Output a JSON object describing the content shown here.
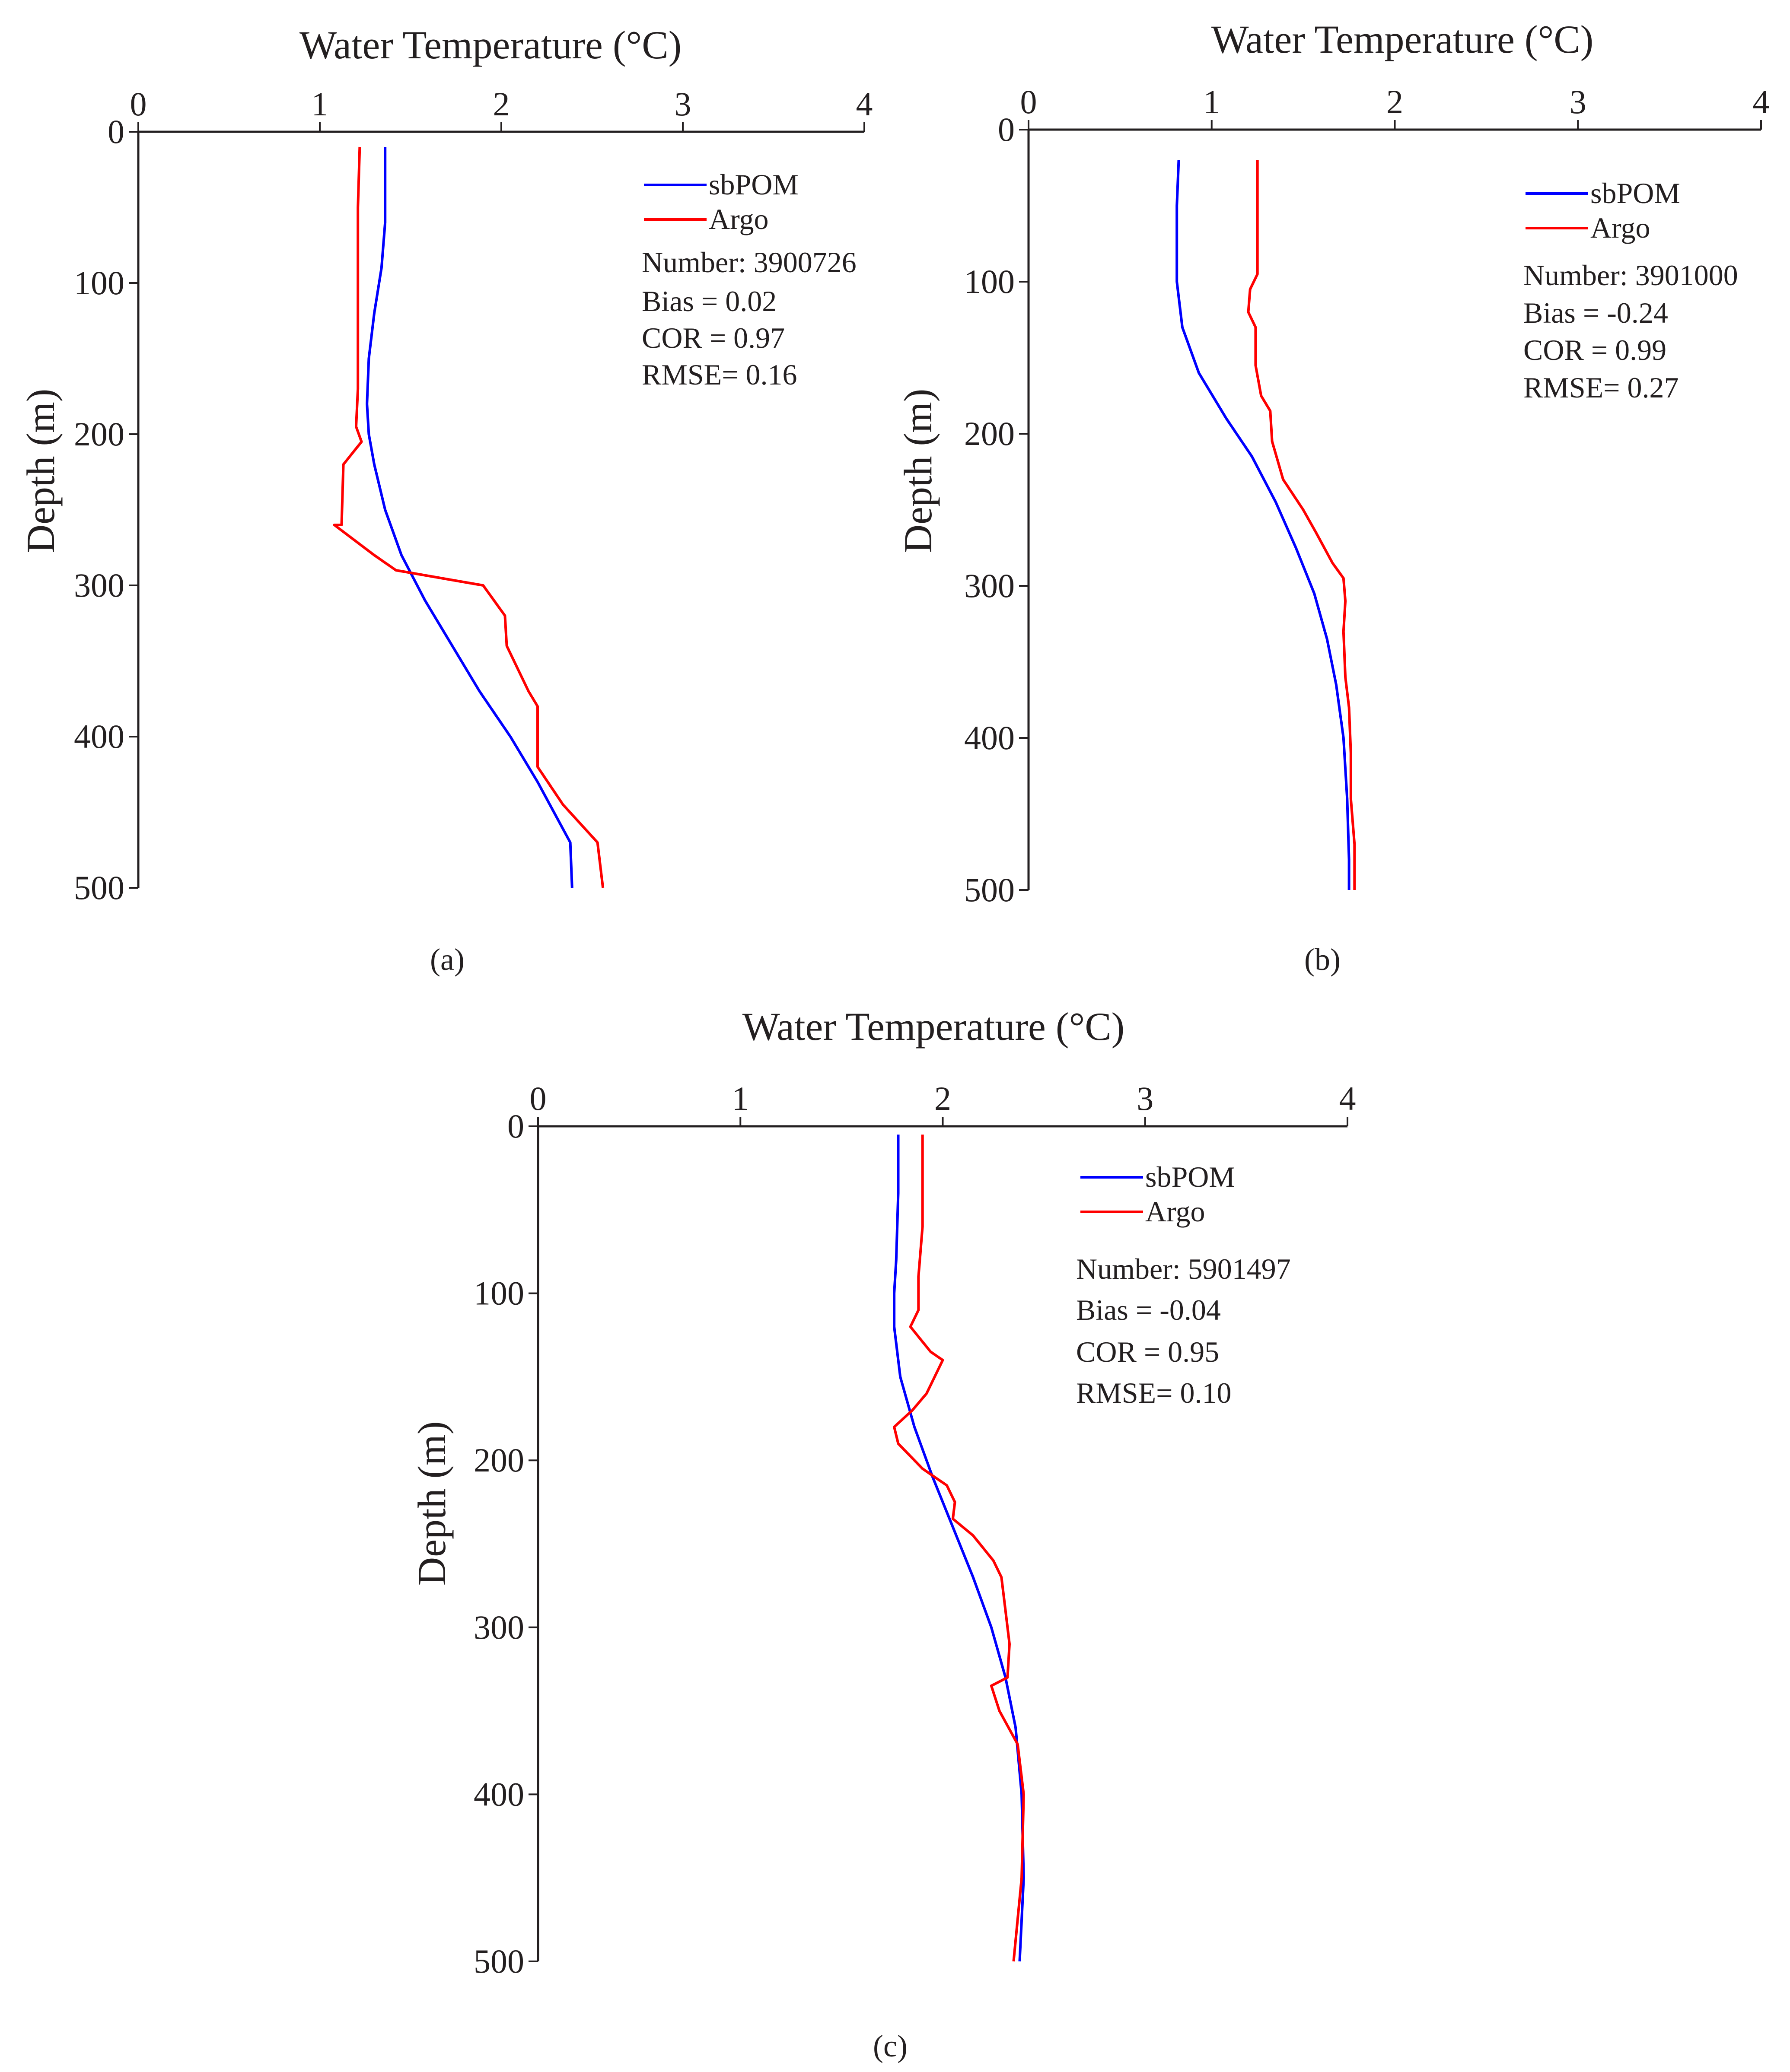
{
  "chart_data": [
    {
      "type": "line",
      "panel_label": "a",
      "xlabel": "Water Temperature (°C)",
      "ylabel": "Depth (m)",
      "xlim": [
        0,
        4
      ],
      "ylim": [
        0,
        500
      ],
      "x_ticks": [
        0,
        1,
        2,
        3,
        4
      ],
      "y_ticks": [
        0,
        100,
        200,
        300,
        400,
        500
      ],
      "legend": {
        "position": "top-right",
        "entries": [
          {
            "name": "sbPOM",
            "color": "#0000ff"
          },
          {
            "name": "Argo",
            "color": "#ff0000"
          }
        ]
      },
      "stats": [
        "Number: 3900726",
        "Bias = 0.02",
        "COR = 0.97",
        "RMSE= 0.16"
      ],
      "series": [
        {
          "name": "sbPOM",
          "color": "#0000ff",
          "points": [
            [
              1.36,
              10
            ],
            [
              1.36,
              30
            ],
            [
              1.36,
              60
            ],
            [
              1.34,
              90
            ],
            [
              1.3,
              120
            ],
            [
              1.27,
              150
            ],
            [
              1.26,
              180
            ],
            [
              1.27,
              200
            ],
            [
              1.3,
              220
            ],
            [
              1.36,
              250
            ],
            [
              1.45,
              280
            ],
            [
              1.58,
              310
            ],
            [
              1.73,
              340
            ],
            [
              1.88,
              370
            ],
            [
              2.05,
              400
            ],
            [
              2.2,
              430
            ],
            [
              2.38,
              470
            ],
            [
              2.39,
              500
            ]
          ]
        },
        {
          "name": "Argo",
          "color": "#ff0000",
          "points": [
            [
              1.22,
              10
            ],
            [
              1.21,
              50
            ],
            [
              1.21,
              100
            ],
            [
              1.21,
              150
            ],
            [
              1.21,
              170
            ],
            [
              1.2,
              195
            ],
            [
              1.23,
              205
            ],
            [
              1.13,
              220
            ],
            [
              1.12,
              260
            ],
            [
              1.08,
              260
            ],
            [
              1.3,
              280
            ],
            [
              1.42,
              290
            ],
            [
              1.9,
              300
            ],
            [
              2.02,
              320
            ],
            [
              2.03,
              340
            ],
            [
              2.15,
              370
            ],
            [
              2.2,
              380
            ],
            [
              2.2,
              420
            ],
            [
              2.34,
              445
            ],
            [
              2.53,
              470
            ],
            [
              2.56,
              500
            ]
          ]
        }
      ]
    },
    {
      "type": "line",
      "panel_label": "b",
      "xlabel": "Water Temperature (°C)",
      "ylabel": "Depth (m)",
      "xlim": [
        0,
        4
      ],
      "ylim": [
        0,
        500
      ],
      "x_ticks": [
        0,
        1,
        2,
        3,
        4
      ],
      "y_ticks": [
        0,
        100,
        200,
        300,
        400,
        500
      ],
      "legend": {
        "position": "top-right",
        "entries": [
          {
            "name": "sbPOM",
            "color": "#0000ff"
          },
          {
            "name": "Argo",
            "color": "#ff0000"
          }
        ]
      },
      "stats": [
        "Number: 3901000",
        "Bias = -0.24",
        "COR = 0.99",
        "RMSE= 0.27"
      ],
      "series": [
        {
          "name": "sbPOM",
          "color": "#0000ff",
          "points": [
            [
              0.82,
              20
            ],
            [
              0.81,
              50
            ],
            [
              0.81,
              80
            ],
            [
              0.81,
              100
            ],
            [
              0.84,
              130
            ],
            [
              0.93,
              160
            ],
            [
              1.08,
              190
            ],
            [
              1.22,
              215
            ],
            [
              1.35,
              245
            ],
            [
              1.46,
              275
            ],
            [
              1.56,
              305
            ],
            [
              1.63,
              335
            ],
            [
              1.68,
              365
            ],
            [
              1.72,
              400
            ],
            [
              1.74,
              440
            ],
            [
              1.75,
              480
            ],
            [
              1.75,
              500
            ]
          ]
        },
        {
          "name": "Argo",
          "color": "#ff0000",
          "points": [
            [
              1.25,
              20
            ],
            [
              1.25,
              60
            ],
            [
              1.25,
              95
            ],
            [
              1.21,
              105
            ],
            [
              1.2,
              120
            ],
            [
              1.24,
              130
            ],
            [
              1.24,
              155
            ],
            [
              1.27,
              175
            ],
            [
              1.32,
              185
            ],
            [
              1.33,
              205
            ],
            [
              1.39,
              230
            ],
            [
              1.5,
              250
            ],
            [
              1.57,
              265
            ],
            [
              1.66,
              285
            ],
            [
              1.72,
              295
            ],
            [
              1.73,
              310
            ],
            [
              1.72,
              330
            ],
            [
              1.73,
              360
            ],
            [
              1.75,
              380
            ],
            [
              1.76,
              410
            ],
            [
              1.76,
              440
            ],
            [
              1.78,
              470
            ],
            [
              1.78,
              500
            ]
          ]
        }
      ]
    },
    {
      "type": "line",
      "panel_label": "c",
      "xlabel": "Water Temperature (°C)",
      "ylabel": "Depth (m)",
      "xlim": [
        0,
        4
      ],
      "ylim": [
        0,
        500
      ],
      "x_ticks": [
        0,
        1,
        2,
        3,
        4
      ],
      "y_ticks": [
        0,
        100,
        200,
        300,
        400,
        500
      ],
      "legend": {
        "position": "top-right",
        "entries": [
          {
            "name": "sbPOM",
            "color": "#0000ff"
          },
          {
            "name": "Argo",
            "color": "#ff0000"
          }
        ]
      },
      "stats": [
        "Number: 5901497",
        "Bias = -0.04",
        "COR = 0.95",
        "RMSE= 0.10"
      ],
      "series": [
        {
          "name": "sbPOM",
          "color": "#0000ff",
          "points": [
            [
              1.78,
              5
            ],
            [
              1.78,
              40
            ],
            [
              1.77,
              80
            ],
            [
              1.76,
              100
            ],
            [
              1.76,
              120
            ],
            [
              1.79,
              150
            ],
            [
              1.86,
              180
            ],
            [
              1.95,
              210
            ],
            [
              2.05,
              240
            ],
            [
              2.15,
              270
            ],
            [
              2.24,
              300
            ],
            [
              2.31,
              330
            ],
            [
              2.36,
              360
            ],
            [
              2.39,
              400
            ],
            [
              2.4,
              450
            ],
            [
              2.38,
              500
            ]
          ]
        },
        {
          "name": "Argo",
          "color": "#ff0000",
          "points": [
            [
              1.9,
              5
            ],
            [
              1.9,
              60
            ],
            [
              1.88,
              90
            ],
            [
              1.88,
              110
            ],
            [
              1.84,
              120
            ],
            [
              1.94,
              135
            ],
            [
              2.0,
              140
            ],
            [
              1.92,
              160
            ],
            [
              1.85,
              170
            ],
            [
              1.76,
              180
            ],
            [
              1.78,
              190
            ],
            [
              1.9,
              205
            ],
            [
              2.02,
              215
            ],
            [
              2.06,
              225
            ],
            [
              2.05,
              235
            ],
            [
              2.15,
              245
            ],
            [
              2.25,
              260
            ],
            [
              2.29,
              270
            ],
            [
              2.31,
              290
            ],
            [
              2.33,
              310
            ],
            [
              2.32,
              330
            ],
            [
              2.24,
              335
            ],
            [
              2.28,
              350
            ],
            [
              2.37,
              370
            ],
            [
              2.4,
              400
            ],
            [
              2.39,
              450
            ],
            [
              2.35,
              500
            ]
          ]
        }
      ]
    }
  ],
  "panel_captions": [
    "(a)",
    "(b)",
    "(c)"
  ]
}
